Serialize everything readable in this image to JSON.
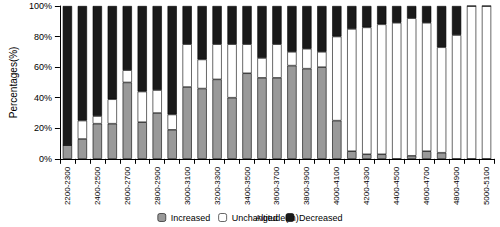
{
  "chart_data": {
    "type": "bar",
    "stacked": true,
    "grid": false,
    "legend": "bottom",
    "x_label": "Altitude(m)",
    "y_label": "Percentages(%)",
    "categories": [
      "2200-2300",
      null,
      "2400-2500",
      null,
      "2600-2700",
      null,
      "2800-2900",
      null,
      "3000-3100",
      null,
      "3200-3300",
      null,
      "3400-3500",
      null,
      "3600-3700",
      null,
      "3800-3900",
      null,
      "4000-4100",
      null,
      "4200-4300",
      null,
      "4400-4500",
      null,
      "4600-4700",
      null,
      "4800-4900",
      null,
      "5000-5100"
    ],
    "series": [
      {
        "name": "Increased",
        "color": "#999999",
        "values": [
          9,
          13,
          23,
          23,
          50,
          24,
          30,
          19,
          47,
          46,
          52,
          40,
          56,
          53,
          53,
          61,
          59,
          60,
          25,
          5,
          3,
          3,
          0,
          2,
          5,
          4,
          0,
          0,
          0
        ]
      },
      {
        "name": "Unchanged",
        "color": "#ffffff",
        "values": [
          0,
          12,
          5,
          16,
          8,
          20,
          15,
          10,
          28,
          19,
          23,
          35,
          19,
          13,
          22,
          9,
          13,
          10,
          55,
          80,
          83,
          85,
          89,
          90,
          84,
          69,
          81,
          100,
          100
        ]
      },
      {
        "name": "Decreased",
        "color": "#1a1a1a",
        "values": [
          91,
          75,
          72,
          61,
          42,
          56,
          55,
          71,
          25,
          35,
          25,
          25,
          25,
          34,
          25,
          30,
          28,
          30,
          20,
          15,
          14,
          12,
          11,
          8,
          11,
          27,
          19,
          0,
          0
        ]
      }
    ],
    "ylim": [
      0,
      100
    ],
    "yticks": [
      {
        "value": 0,
        "label": "0%"
      },
      {
        "value": 20,
        "label": "20%"
      },
      {
        "value": 40,
        "label": "40%"
      },
      {
        "value": 60,
        "label": "60%"
      },
      {
        "value": 80,
        "label": "80%"
      },
      {
        "value": 100,
        "label": "100%"
      }
    ]
  }
}
